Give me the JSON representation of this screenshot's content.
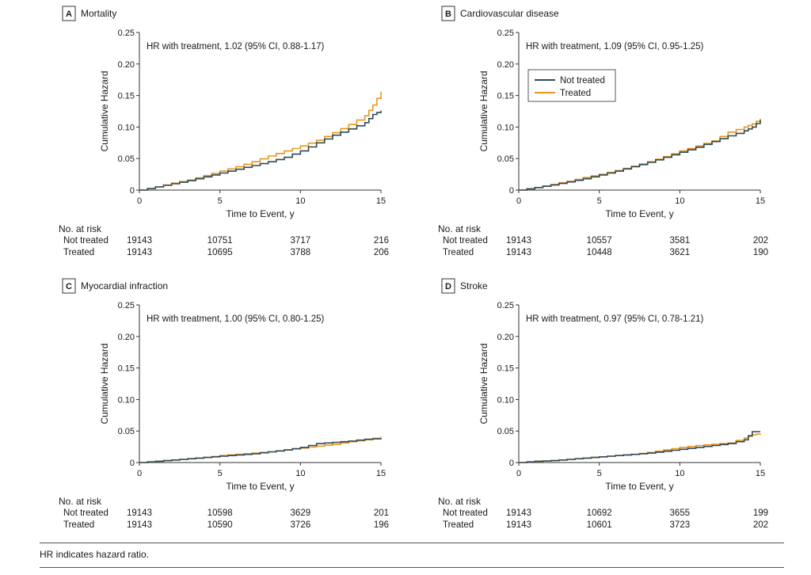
{
  "figure": {
    "footnote": "HR indicates hazard ratio."
  },
  "colors": {
    "not_treated": "#2f4a56",
    "treated": "#e8961f",
    "axis": "#333333",
    "text": "#1a1a1a"
  },
  "chart_data": [
    {
      "panel": "A",
      "title": "Mortality",
      "type": "line",
      "xlabel": "Time to Event, y",
      "ylabel": "Cumulative Hazard",
      "xlim": [
        0,
        15
      ],
      "ylim": [
        0,
        0.25
      ],
      "xticks": [
        0,
        5,
        10,
        15
      ],
      "yticks": [
        0,
        0.05,
        0.1,
        0.15,
        0.2,
        0.25
      ],
      "ytick_labels": [
        "0",
        "0.05",
        "0.10",
        "0.15",
        "0.20",
        "0.25"
      ],
      "annotation": "HR with treatment, 1.02 (95% CI, 0.88-1.17)",
      "show_legend": false,
      "series": [
        {
          "name": "Not treated",
          "color_key": "not_treated",
          "x": [
            0,
            1,
            2,
            3,
            4,
            5,
            6,
            7,
            8,
            9,
            10,
            11,
            12,
            13,
            14,
            14.5,
            15
          ],
          "y": [
            0,
            0.005,
            0.01,
            0.015,
            0.021,
            0.027,
            0.033,
            0.039,
            0.045,
            0.052,
            0.062,
            0.075,
            0.087,
            0.097,
            0.107,
            0.12,
            0.126
          ]
        },
        {
          "name": "Treated",
          "color_key": "treated",
          "x": [
            0,
            1,
            2,
            3,
            4,
            5,
            6,
            7,
            8,
            9,
            10,
            11,
            12,
            13,
            14,
            14.5,
            15
          ],
          "y": [
            0,
            0.005,
            0.011,
            0.016,
            0.023,
            0.03,
            0.037,
            0.045,
            0.054,
            0.062,
            0.07,
            0.079,
            0.091,
            0.104,
            0.118,
            0.135,
            0.156
          ]
        }
      ],
      "risk_table": {
        "heading": "No. at risk",
        "rows": [
          {
            "label": "Not treated",
            "values": [
              "19143",
              "10751",
              "3717",
              "216"
            ]
          },
          {
            "label": "Treated",
            "values": [
              "19143",
              "10695",
              "3788",
              "206"
            ]
          }
        ]
      }
    },
    {
      "panel": "B",
      "title": "Cardiovascular disease",
      "type": "line",
      "xlabel": "Time to Event, y",
      "ylabel": "Cumulative Hazard",
      "xlim": [
        0,
        15
      ],
      "ylim": [
        0,
        0.25
      ],
      "xticks": [
        0,
        5,
        10,
        15
      ],
      "yticks": [
        0,
        0.05,
        0.1,
        0.15,
        0.2,
        0.25
      ],
      "ytick_labels": [
        "0",
        "0.05",
        "0.10",
        "0.15",
        "0.20",
        "0.25"
      ],
      "annotation": "HR with treatment, 1.09 (95% CI, 0.95-1.25)",
      "show_legend": true,
      "legend": {
        "position": "upper-left",
        "entries": [
          "Not treated",
          "Treated"
        ]
      },
      "series": [
        {
          "name": "Not treated",
          "color_key": "not_treated",
          "x": [
            0,
            1,
            2,
            3,
            4,
            5,
            6,
            7,
            8,
            9,
            10,
            11,
            12,
            13,
            14,
            14.5,
            15
          ],
          "y": [
            0,
            0.004,
            0.008,
            0.013,
            0.018,
            0.024,
            0.03,
            0.037,
            0.044,
            0.052,
            0.06,
            0.068,
            0.077,
            0.086,
            0.094,
            0.1,
            0.111
          ]
        },
        {
          "name": "Treated",
          "color_key": "treated",
          "x": [
            0,
            1,
            2,
            3,
            4,
            5,
            6,
            7,
            8,
            9,
            10,
            11,
            12,
            13,
            14,
            14.5,
            15
          ],
          "y": [
            0,
            0.004,
            0.009,
            0.014,
            0.02,
            0.025,
            0.031,
            0.038,
            0.045,
            0.053,
            0.062,
            0.07,
            0.078,
            0.092,
            0.1,
            0.105,
            0.113
          ]
        }
      ],
      "risk_table": {
        "heading": "No. at risk",
        "rows": [
          {
            "label": "Not treated",
            "values": [
              "19143",
              "10557",
              "3581",
              "202"
            ]
          },
          {
            "label": "Treated",
            "values": [
              "19143",
              "10448",
              "3621",
              "190"
            ]
          }
        ]
      }
    },
    {
      "panel": "C",
      "title": "Myocardial infraction",
      "type": "line",
      "xlabel": "Time to Event, y",
      "ylabel": "Cumulative Hazard",
      "xlim": [
        0,
        15
      ],
      "ylim": [
        0,
        0.25
      ],
      "xticks": [
        0,
        5,
        10,
        15
      ],
      "yticks": [
        0,
        0.05,
        0.1,
        0.15,
        0.2,
        0.25
      ],
      "ytick_labels": [
        "0",
        "0.05",
        "0.10",
        "0.15",
        "0.20",
        "0.25"
      ],
      "annotation": "HR with treatment, 1.00 (95% CI, 0.80-1.25)",
      "show_legend": false,
      "series": [
        {
          "name": "Not treated",
          "color_key": "not_treated",
          "x": [
            0,
            1,
            2,
            3,
            4,
            5,
            6,
            7,
            8,
            9,
            10,
            11,
            12,
            13,
            14,
            15
          ],
          "y": [
            0,
            0.002,
            0.004,
            0.006,
            0.008,
            0.01,
            0.012,
            0.014,
            0.017,
            0.02,
            0.024,
            0.03,
            0.032,
            0.034,
            0.037,
            0.038
          ]
        },
        {
          "name": "Treated",
          "color_key": "treated",
          "x": [
            0,
            1,
            2,
            3,
            4,
            5,
            6,
            7,
            8,
            9,
            10,
            11,
            12,
            13,
            14,
            15
          ],
          "y": [
            0,
            0.002,
            0.004,
            0.006,
            0.008,
            0.011,
            0.013,
            0.015,
            0.017,
            0.02,
            0.023,
            0.026,
            0.029,
            0.033,
            0.036,
            0.041
          ]
        }
      ],
      "risk_table": {
        "heading": "No. at risk",
        "rows": [
          {
            "label": "Not treated",
            "values": [
              "19143",
              "10598",
              "3629",
              "201"
            ]
          },
          {
            "label": "Treated",
            "values": [
              "19143",
              "10590",
              "3726",
              "196"
            ]
          }
        ]
      }
    },
    {
      "panel": "D",
      "title": "Stroke",
      "type": "line",
      "xlabel": "Time to Event, y",
      "ylabel": "Cumulative Hazard",
      "xlim": [
        0,
        15
      ],
      "ylim": [
        0,
        0.25
      ],
      "xticks": [
        0,
        5,
        10,
        15
      ],
      "yticks": [
        0,
        0.05,
        0.1,
        0.15,
        0.2,
        0.25
      ],
      "ytick_labels": [
        "0",
        "0.05",
        "0.10",
        "0.15",
        "0.20",
        "0.25"
      ],
      "annotation": "HR with treatment, 0.97 (95% CI, 0.78-1.21)",
      "show_legend": false,
      "series": [
        {
          "name": "Not treated",
          "color_key": "not_treated",
          "x": [
            0,
            1,
            2,
            3,
            4,
            5,
            6,
            7,
            8,
            9,
            10,
            11,
            12,
            13,
            14,
            14.5,
            15
          ],
          "y": [
            0,
            0.002,
            0.003,
            0.005,
            0.007,
            0.009,
            0.011,
            0.013,
            0.015,
            0.018,
            0.021,
            0.024,
            0.027,
            0.03,
            0.036,
            0.049,
            0.049
          ]
        },
        {
          "name": "Treated",
          "color_key": "treated",
          "x": [
            0,
            1,
            2,
            3,
            4,
            5,
            6,
            7,
            8,
            9,
            10,
            11,
            12,
            13,
            14,
            14.5,
            15
          ],
          "y": [
            0,
            0.002,
            0.003,
            0.005,
            0.007,
            0.009,
            0.011,
            0.013,
            0.016,
            0.02,
            0.024,
            0.027,
            0.029,
            0.031,
            0.039,
            0.044,
            0.046
          ]
        }
      ],
      "risk_table": {
        "heading": "No. at risk",
        "rows": [
          {
            "label": "Not treated",
            "values": [
              "19143",
              "10692",
              "3655",
              "199"
            ]
          },
          {
            "label": "Treated",
            "values": [
              "19143",
              "10601",
              "3723",
              "202"
            ]
          }
        ]
      }
    }
  ]
}
